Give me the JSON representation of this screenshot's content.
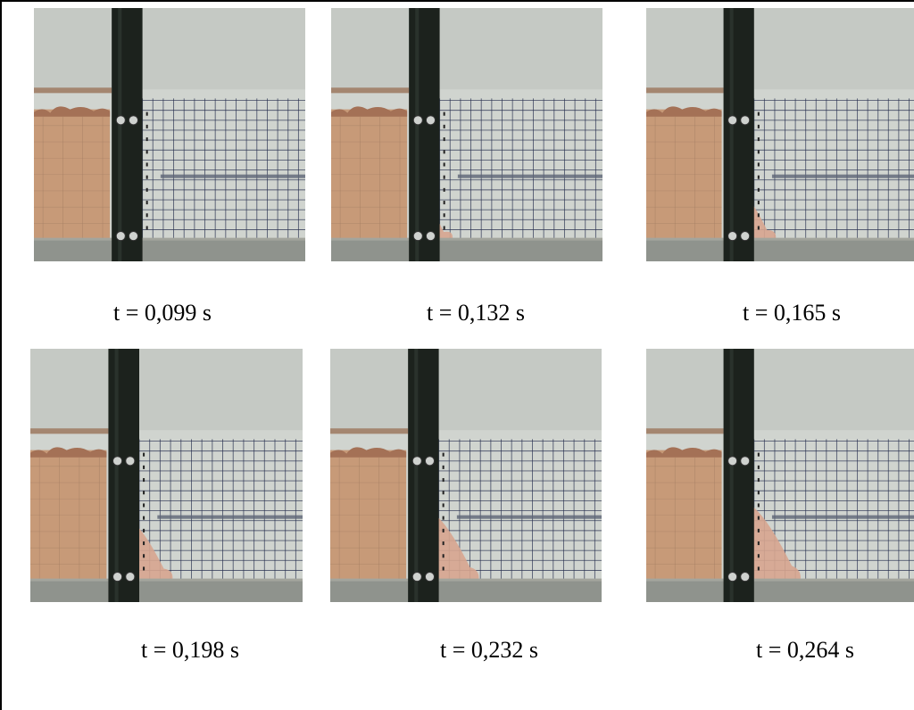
{
  "frames": [
    {
      "caption": "t = 0,099 s",
      "collapse_progress": 0.0
    },
    {
      "caption": "t = 0,132 s",
      "collapse_progress": 0.25
    },
    {
      "caption": "t = 0,165 s",
      "collapse_progress": 0.45
    },
    {
      "caption": "t = 0,198 s",
      "collapse_progress": 0.7
    },
    {
      "caption": "t = 0,232 s",
      "collapse_progress": 0.85
    },
    {
      "caption": "t = 0,264 s",
      "collapse_progress": 1.0
    }
  ],
  "colors": {
    "wall": "#c9ccc7",
    "sediment": "#c79a78",
    "flow": "#d7a58f",
    "gate": "#1c221d",
    "grid": "#2b3352",
    "floor": "#8f938d"
  }
}
